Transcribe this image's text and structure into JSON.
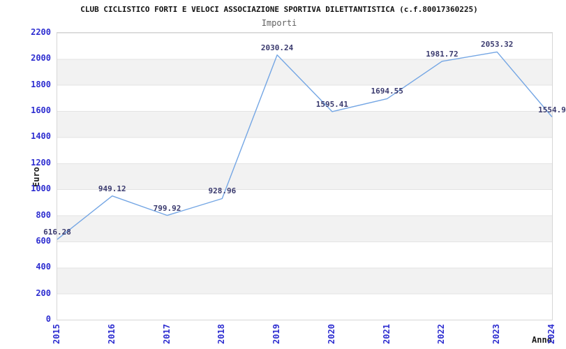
{
  "header": {
    "title": "CLUB CICLISTICO FORTI E VELOCI ASSOCIAZIONE SPORTIVA DILETTANTISTICA (c.f.80017360225)",
    "subtitle": "Importi"
  },
  "chart_data": {
    "type": "line",
    "title": "Importi",
    "xlabel": "Anno",
    "ylabel": "Euro",
    "categories": [
      "2015",
      "2016",
      "2017",
      "2018",
      "2019",
      "2020",
      "2021",
      "2022",
      "2023",
      "2024"
    ],
    "values": [
      616.28,
      949.12,
      799.92,
      928.96,
      2030.24,
      1595.41,
      1694.55,
      1981.72,
      2053.32,
      1554.9
    ],
    "point_labels": [
      "616.28",
      "949.12",
      "799.92",
      "928.96",
      "2030.24",
      "1595.41",
      "1694.55",
      "1981.72",
      "2053.32",
      "1554.9"
    ],
    "ylim": [
      0,
      2200
    ],
    "ytick_step": 200,
    "yticks": [
      "2200",
      "2000",
      "1800",
      "1600",
      "1400",
      "1200",
      "1000",
      "800",
      "600",
      "400",
      "200",
      "0"
    ],
    "grid": "horizontal-bands-alternating",
    "legend_position": "none",
    "colors": {
      "line": "#74a6e4",
      "point_label": "#3a3a6e",
      "tick_label": "#2d2dd0",
      "band_gray": "#f2f2f2",
      "band_white": "#ffffff",
      "plot_border": "#d6d6d6",
      "title_text": "#111111",
      "subtitle_text": "#606060",
      "axis_title_text": "#1a1a1a"
    }
  }
}
